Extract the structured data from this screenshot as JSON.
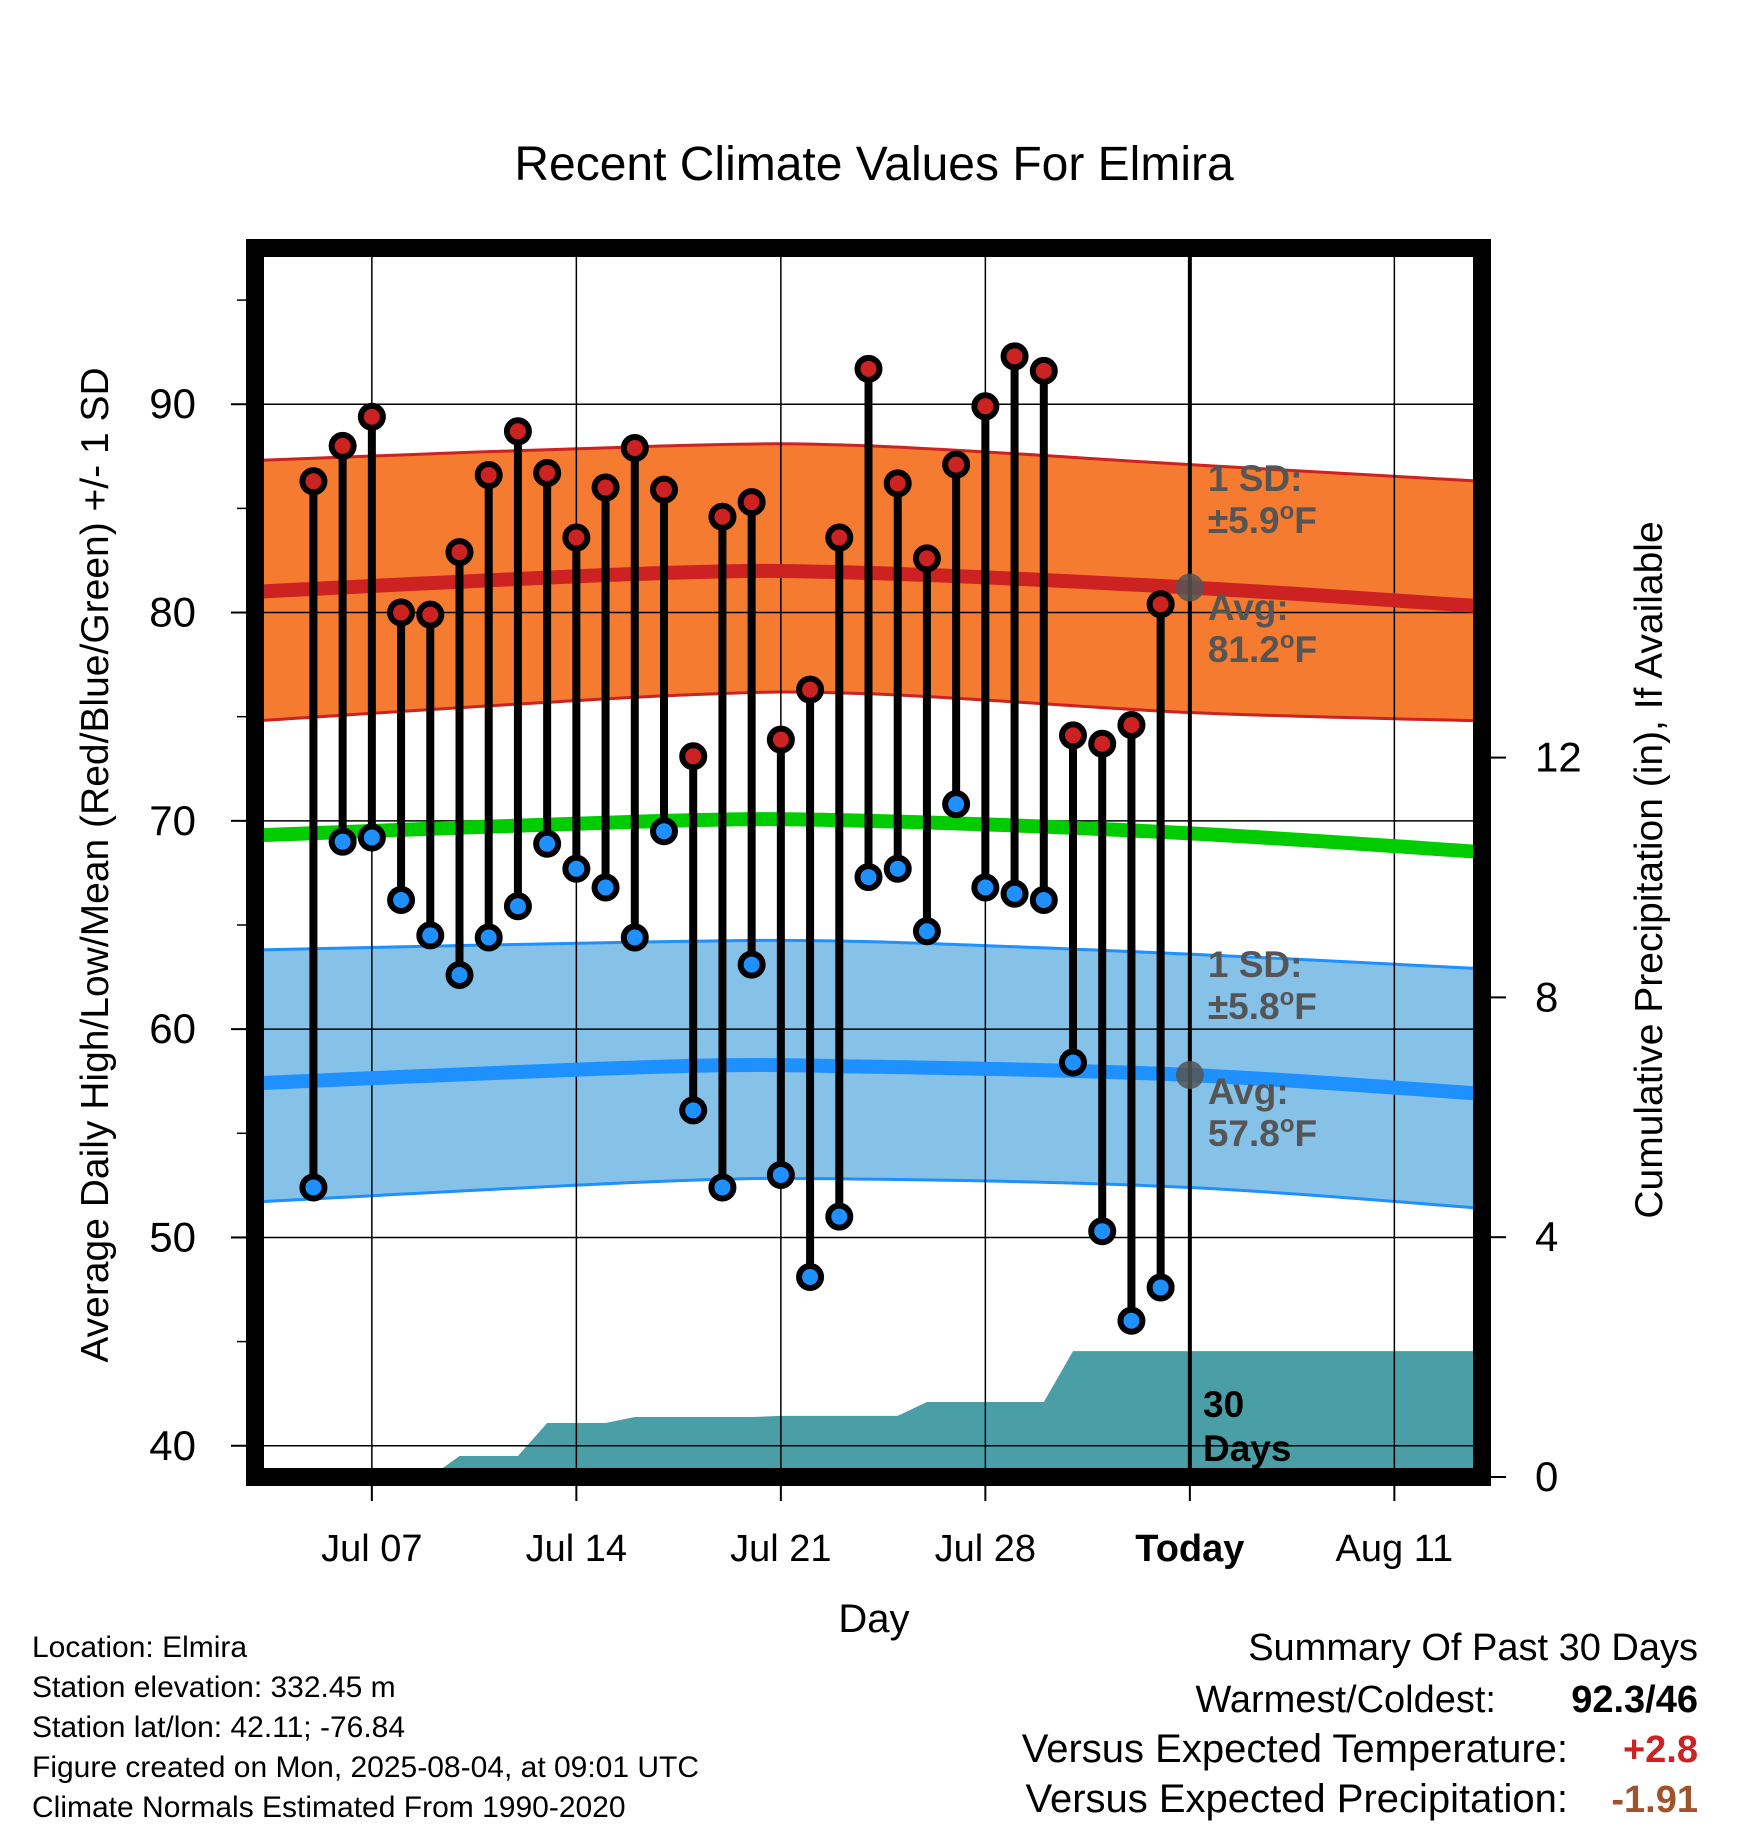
{
  "chart_data": {
    "type": "line",
    "title": "Recent Climate Values For Elmira",
    "xlabel": "Day",
    "ylabel": "Average Daily High/Low/Mean (Red/Blue/Green) +/- 1 SD",
    "y2label": "Cumulative Precipitation (in), If Available",
    "ylim": [
      38.5,
      97.5
    ],
    "y2lim": [
      0,
      20.5
    ],
    "xlim": [
      "2025-07-03",
      "2025-08-14"
    ],
    "grid": true,
    "x_ticks": [
      {
        "date": "2025-07-07",
        "label": "Jul 07"
      },
      {
        "date": "2025-07-14",
        "label": "Jul 14"
      },
      {
        "date": "2025-07-21",
        "label": "Jul 21"
      },
      {
        "date": "2025-07-28",
        "label": "Jul 28"
      },
      {
        "date": "2025-08-04",
        "label": "Today"
      },
      {
        "date": "2025-08-11",
        "label": "Aug 11"
      }
    ],
    "y_ticks": [
      "40",
      "50",
      "60",
      "70",
      "80",
      "90"
    ],
    "y2_ticks": [
      "0",
      "4",
      "8",
      "12"
    ],
    "today": "2025-08-04",
    "dates": [
      "2025-07-05",
      "2025-07-06",
      "2025-07-07",
      "2025-07-08",
      "2025-07-09",
      "2025-07-10",
      "2025-07-11",
      "2025-07-12",
      "2025-07-13",
      "2025-07-14",
      "2025-07-15",
      "2025-07-16",
      "2025-07-17",
      "2025-07-18",
      "2025-07-19",
      "2025-07-20",
      "2025-07-21",
      "2025-07-22",
      "2025-07-23",
      "2025-07-24",
      "2025-07-25",
      "2025-07-26",
      "2025-07-27",
      "2025-07-28",
      "2025-07-29",
      "2025-07-30",
      "2025-07-31",
      "2025-08-01",
      "2025-08-02",
      "2025-08-03"
    ],
    "series": [
      {
        "name": "High",
        "color": "#cc2222",
        "values": [
          86.3,
          88.0,
          89.4,
          80.0,
          79.9,
          82.9,
          86.6,
          88.7,
          86.7,
          83.6,
          86.0,
          87.9,
          85.9,
          73.1,
          84.6,
          85.3,
          73.9,
          76.3,
          83.6,
          91.7,
          86.2,
          82.6,
          87.1,
          89.9,
          92.3,
          91.6,
          74.1,
          73.7,
          74.6,
          80.4
        ]
      },
      {
        "name": "Low",
        "color": "#1e90ff",
        "values": [
          52.4,
          69.0,
          69.2,
          66.2,
          64.5,
          62.6,
          64.4,
          65.9,
          68.9,
          67.7,
          66.8,
          64.4,
          69.5,
          56.1,
          52.4,
          63.1,
          53.0,
          48.1,
          51.0,
          67.3,
          67.7,
          64.7,
          70.8,
          66.8,
          66.5,
          66.2,
          58.4,
          50.3,
          46.0,
          47.6
        ]
      }
    ],
    "normals": {
      "x": [
        "2025-07-03",
        "2025-07-17",
        "2025-07-24",
        "2025-08-04",
        "2025-08-14"
      ],
      "high_avg": [
        81.0,
        81.9,
        81.9,
        81.2,
        80.3
      ],
      "high_upper": [
        87.3,
        88.0,
        88.0,
        87.1,
        86.3
      ],
      "high_lower": [
        74.8,
        76.0,
        76.1,
        75.2,
        74.8
      ],
      "mean_avg": [
        69.3,
        70.0,
        70.0,
        69.4,
        68.5
      ],
      "low_avg": [
        57.4,
        58.2,
        58.2,
        57.8,
        56.9
      ],
      "low_upper": [
        63.8,
        64.2,
        64.2,
        63.6,
        62.9
      ],
      "low_lower": [
        51.7,
        52.7,
        52.8,
        52.4,
        51.4
      ]
    },
    "precip_cumulative": {
      "x": [
        "2025-07-05",
        "2025-07-08",
        "2025-07-09",
        "2025-07-10",
        "2025-07-11",
        "2025-07-12",
        "2025-07-13",
        "2025-07-15",
        "2025-07-16",
        "2025-07-20",
        "2025-07-21",
        "2025-07-25",
        "2025-07-26",
        "2025-07-30",
        "2025-07-31",
        "2025-08-14"
      ],
      "values": [
        0,
        0,
        0,
        0.35,
        0.35,
        0.35,
        0.9,
        0.9,
        1.0,
        1.0,
        1.02,
        1.02,
        1.25,
        1.25,
        2.1,
        2.1
      ]
    },
    "annotations": [
      {
        "series": "High",
        "sd_label": "1 SD:",
        "sd_value": "±5.9",
        "avg_label": "Avg:",
        "avg_value": "81.2",
        "unit": "F",
        "degree": "o"
      },
      {
        "series": "Low",
        "sd_label": "1 SD:",
        "sd_value": "±5.8",
        "avg_label": "Avg:",
        "avg_value": "57.8",
        "unit": "F",
        "degree": "o"
      }
    ],
    "period_label_line1": "30",
    "period_label_line2": "Days"
  },
  "info": [
    "Location: Elmira",
    "Station elevation: 332.45 m",
    "Station lat/lon: 42.11; -76.84",
    "Figure created on Mon, 2025-08-04, at 09:01 UTC",
    "Climate Normals Estimated From 1990-2020"
  ],
  "summary": {
    "heading": "Summary Of Past 30 Days",
    "warmest_label": "Warmest/Coldest:",
    "warmest_value": "92.3/46",
    "temp_label": "Versus Expected Temperature:",
    "temp_value": "+2.8",
    "temp_color": "#cc2222",
    "precip_label": "Versus Expected Precipitation:",
    "precip_value": "-1.91",
    "precip_color": "#a0522d"
  },
  "colors": {
    "high_band": "#f47b2f",
    "high_line": "#cc2222",
    "low_band": "#86c1e8",
    "low_line": "#1e90ff",
    "mean_line": "#00cc00",
    "precip": "#4a9ea5",
    "annotation": "#555555"
  }
}
